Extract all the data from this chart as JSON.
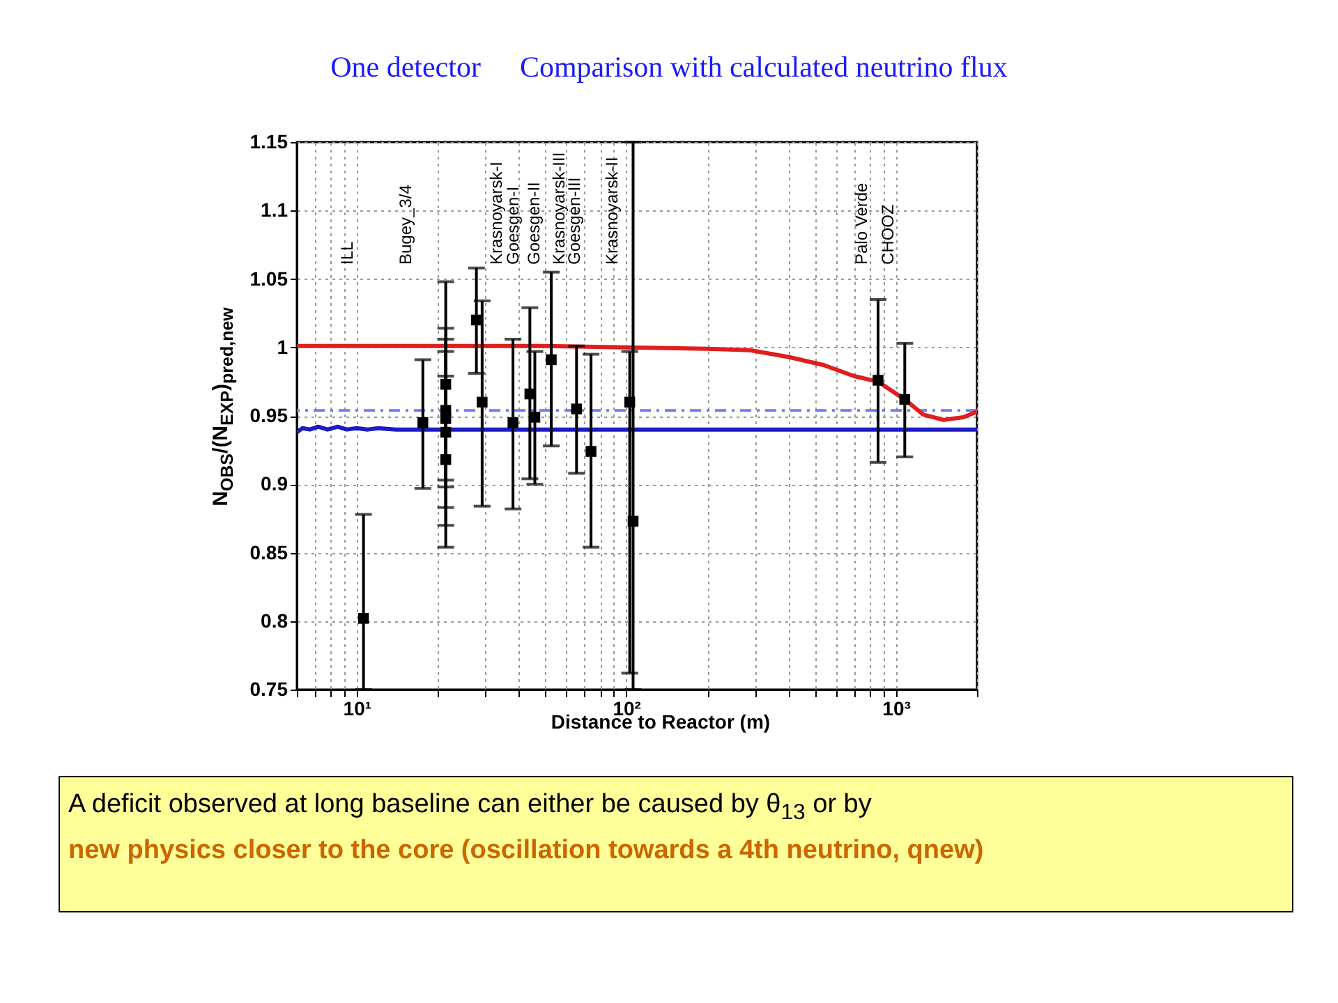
{
  "chart_data": {
    "type": "scatter",
    "title": "One detector",
    "subtitle": "Comparison with calculated neutrino flux",
    "xlabel": "Distance to Reactor (m)",
    "ylabel": "N$_{OBS}$/(N$_{EXP}$)$_{pred,new}$",
    "log": "x",
    "grid": true,
    "xlim": [
      6,
      2000
    ],
    "ylim": [
      0.75,
      1.15
    ],
    "xticks": [
      {
        "value": 6,
        "label": null
      },
      {
        "value": 7,
        "label": null
      },
      {
        "value": 8,
        "label": null
      },
      {
        "value": 9,
        "label": null
      },
      {
        "value": 10,
        "label": "10¹"
      },
      {
        "value": 20,
        "label": null
      },
      {
        "value": 30,
        "label": null
      },
      {
        "value": 40,
        "label": null
      },
      {
        "value": 50,
        "label": null
      },
      {
        "value": 60,
        "label": null
      },
      {
        "value": 70,
        "label": null
      },
      {
        "value": 80,
        "label": null
      },
      {
        "value": 90,
        "label": null
      },
      {
        "value": 100,
        "label": "10²"
      },
      {
        "value": 200,
        "label": null
      },
      {
        "value": 300,
        "label": null
      },
      {
        "value": 400,
        "label": null
      },
      {
        "value": 500,
        "label": null
      },
      {
        "value": 600,
        "label": null
      },
      {
        "value": 700,
        "label": null
      },
      {
        "value": 800,
        "label": null
      },
      {
        "value": 900,
        "label": null
      },
      {
        "value": 1000,
        "label": "10³"
      },
      {
        "value": 2000,
        "label": null
      }
    ],
    "yticks": [
      0.75,
      0.8,
      0.85,
      0.9,
      0.95,
      1,
      1.05,
      1.1,
      1.15
    ],
    "series": [
      {
        "marker": "square",
        "color": "#000000",
        "x": [
          10.6,
          17.6,
          21.4,
          21.4,
          21.4,
          21.4,
          21.4,
          27.8,
          29.2,
          38,
          43.9,
          45.8,
          52.7,
          65.4,
          74,
          103,
          106,
          859,
          1079
        ],
        "values": [
          0.802,
          0.945,
          0.973,
          0.954,
          0.948,
          0.938,
          0.918,
          1.02,
          0.96,
          0.945,
          0.966,
          0.949,
          0.991,
          0.955,
          0.924,
          0.96,
          0.873,
          0.976,
          0.962
        ],
        "errors": [
          [
            0.75,
            0.878
          ],
          [
            0.897,
            0.991
          ],
          [
            0.898,
            1.048
          ],
          [
            0.903,
            1.006
          ],
          [
            0.883,
            1.014
          ],
          [
            0.87,
            0.997
          ],
          [
            0.854,
            0.979
          ],
          [
            0.981,
            1.058
          ],
          [
            0.884,
            1.034
          ],
          [
            0.882,
            1.006
          ],
          [
            0.904,
            1.029
          ],
          [
            0.9,
            0.997
          ],
          [
            0.928,
            1.055
          ],
          [
            0.908,
            1.001
          ],
          [
            0.854,
            0.995
          ],
          [
            0.762,
            0.997
          ],
          [
            0.75,
            1.15
          ],
          [
            0.916,
            1.035
          ],
          [
            0.92,
            1.003
          ]
        ]
      },
      {
        "type": "line",
        "color": "#e01e1e",
        "x": [
          6,
          20,
          50,
          100,
          200,
          287,
          400,
          541,
          700,
          859,
          1079,
          1261,
          1503,
          1781,
          2000
        ],
        "values": [
          1.001,
          1.001,
          1.001,
          1.0,
          0.999,
          0.998,
          0.993,
          0.987,
          0.979,
          0.975,
          0.962,
          0.951,
          0.947,
          0.949,
          0.953
        ]
      },
      {
        "type": "line",
        "color": "#1c1cc4",
        "x": [
          6,
          6.3,
          6.7,
          7.2,
          7.8,
          8.5,
          9.2,
          10,
          11,
          12,
          14,
          20,
          2000
        ],
        "values": [
          0.938,
          0.941,
          0.94,
          0.942,
          0.94,
          0.942,
          0.94,
          0.941,
          0.94,
          0.941,
          0.94,
          0.94,
          0.94
        ]
      }
    ],
    "ref_lines": [
      {
        "axis": "y",
        "value": 0.954,
        "color": "#6c7ef0",
        "line_style": "dashed"
      }
    ],
    "annotations": [
      "ILL",
      "Bugey_3/4",
      "Krasnoyarsk-I",
      "Goesgen-I",
      "Goesgen-II",
      "Krasnoyarsk-III",
      "Goesgen-III",
      "Krasnoyarsk-II",
      "Palo Verde",
      "CHOOZ",
      "A deficit observed at long baseline can either be caused by θ$_{13}$ or by",
      "new physics closer to the core (oscillation towards a 4th neutrino, qnew)"
    ]
  }
}
